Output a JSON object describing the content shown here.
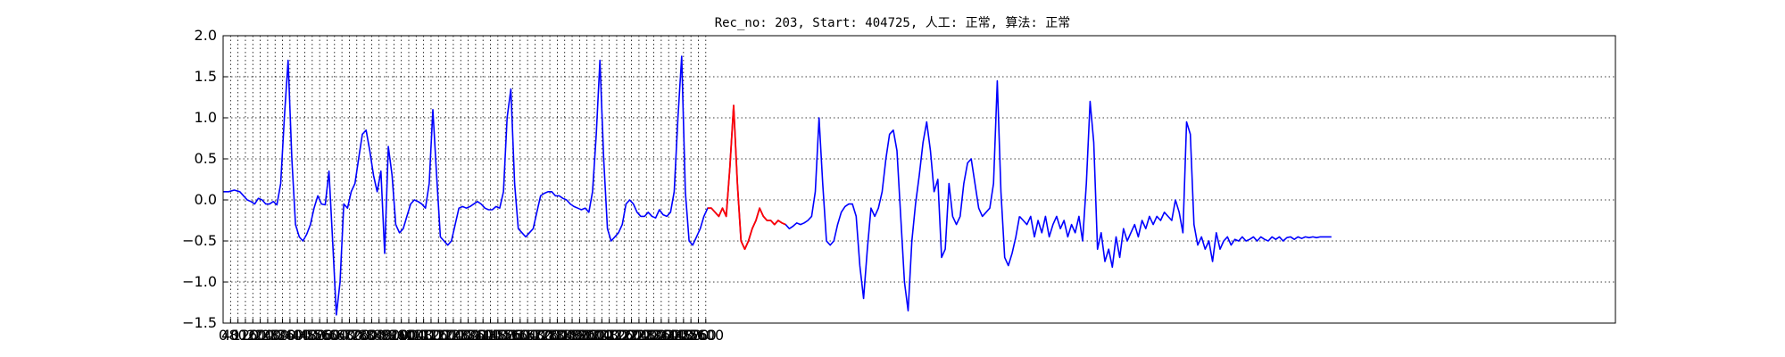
{
  "chart_data": {
    "type": "line",
    "title": "Rec_no: 203, Start: 404725, 人工: 正常, 算法: 正常",
    "xlabel": "",
    "ylabel": "",
    "xlim": [
      0,
      7500
    ],
    "ylim": [
      -1.5,
      2.0
    ],
    "grid": true,
    "x_ticks": [
      0,
      40,
      80,
      120,
      160,
      200,
      240,
      280,
      320,
      360,
      400,
      440,
      480,
      520,
      560,
      600,
      640,
      680,
      720,
      760,
      800,
      840,
      880,
      920,
      960,
      1000,
      1040,
      1080,
      1120,
      1160,
      1200,
      1240,
      1280,
      1320,
      1360,
      1400,
      1440,
      1480,
      1520,
      1560,
      1600,
      1640,
      1680,
      1720,
      1760,
      1800,
      1840,
      1880,
      1920,
      1960,
      2000,
      2040,
      2080,
      2120,
      2160,
      2200,
      2240,
      2280,
      2320,
      2360,
      2400,
      2440,
      2480,
      2520,
      2560,
      2600
    ],
    "y_ticks": [
      -1.5,
      -1.0,
      -0.5,
      0.0,
      0.5,
      1.0,
      1.5,
      2.0
    ],
    "y_tick_labels": [
      "−1.5",
      "−1.0",
      "−0.5",
      "0.0",
      "0.5",
      "1.0",
      "1.5",
      "2.0"
    ],
    "series": [
      {
        "color": "#0000ff",
        "x": [
          0,
          30,
          60,
          90,
          110,
          130,
          150,
          170,
          190,
          210,
          230,
          250,
          270,
          290,
          310,
          330,
          350,
          370,
          390,
          410,
          430,
          450,
          470,
          490,
          510,
          530,
          550,
          570,
          590,
          610,
          630,
          650,
          670,
          690,
          710,
          730,
          750,
          770,
          790,
          810,
          830,
          850,
          870,
          890,
          910,
          930,
          950,
          970,
          990,
          1010,
          1030,
          1050,
          1070,
          1090,
          1110,
          1130,
          1150,
          1170,
          1190,
          1210,
          1230,
          1250,
          1270,
          1290,
          1310,
          1330,
          1350,
          1370,
          1390,
          1410,
          1430,
          1450,
          1470,
          1490,
          1510,
          1530,
          1550,
          1570,
          1590,
          1610,
          1630,
          1650,
          1670,
          1690,
          1710,
          1730,
          1750,
          1770,
          1790,
          1810,
          1830,
          1850,
          1870,
          1890,
          1910,
          1930,
          1950,
          1970,
          1990,
          2010,
          2030,
          2050,
          2070,
          2090,
          2110,
          2130,
          2150,
          2170,
          2190,
          2210,
          2230,
          2250,
          2270,
          2290,
          2310,
          2330,
          2350,
          2370,
          2390,
          2410,
          2430,
          2450,
          2470,
          2490,
          2510,
          2530,
          2550,
          2570,
          2590,
          2610,
          2630,
          2650,
          2670,
          2690,
          2710,
          2730,
          2750,
          2770,
          2790,
          2810,
          2830,
          2850,
          2870,
          2890,
          2910,
          2930,
          2950,
          2970,
          2990,
          3010,
          3030,
          3050,
          3070,
          3090,
          3110,
          3130,
          3150,
          3170,
          3190,
          3210,
          3230,
          3250,
          3270,
          3290,
          3310,
          3330,
          3350,
          3370,
          3390,
          3410,
          3430,
          3450,
          3470,
          3490,
          3510,
          3530,
          3550,
          3570,
          3590,
          3610,
          3630,
          3650,
          3670,
          3690,
          3710,
          3730,
          3750,
          3770,
          3790,
          3810,
          3830,
          3850,
          3870,
          3890,
          3910,
          3930,
          3950,
          3970,
          3990,
          4010,
          4030,
          4050,
          4070,
          4090,
          4110,
          4130,
          4150,
          4170,
          4190,
          4210,
          4230,
          4250,
          4270,
          4290
        ],
        "y": [
          0.1,
          0.1,
          0.12,
          0.1,
          0.05,
          0.0,
          -0.02,
          -0.05,
          0.02,
          0.0,
          -0.05,
          -0.05,
          -0.02,
          -0.06,
          0.2,
          1.0,
          1.7,
          0.5,
          -0.3,
          -0.45,
          -0.5,
          -0.42,
          -0.3,
          -0.1,
          0.05,
          -0.05,
          -0.06,
          0.35,
          -0.5,
          -1.4,
          -1.0,
          -0.05,
          -0.1,
          0.1,
          0.2,
          0.5,
          0.8,
          0.85,
          0.6,
          0.3,
          0.1,
          0.35,
          -0.65,
          0.65,
          0.3,
          -0.3,
          -0.4,
          -0.35,
          -0.2,
          -0.05,
          0.0,
          -0.02,
          -0.05,
          -0.1,
          0.2,
          1.1,
          0.3,
          -0.45,
          -0.5,
          -0.55,
          -0.5,
          -0.3,
          -0.1,
          -0.08,
          -0.1,
          -0.08,
          -0.05,
          -0.02,
          -0.05,
          -0.1,
          -0.12,
          -0.12,
          -0.08,
          -0.1,
          0.1,
          1.0,
          1.35,
          0.2,
          -0.35,
          -0.4,
          -0.45,
          -0.4,
          -0.35,
          -0.15,
          0.05,
          0.08,
          0.1,
          0.1,
          0.05,
          0.05,
          0.02,
          0.0,
          -0.05,
          -0.08,
          -0.1,
          -0.12,
          -0.1,
          -0.15,
          0.1,
          0.8,
          1.7,
          0.5,
          -0.35,
          -0.5,
          -0.45,
          -0.4,
          -0.3,
          -0.05,
          0.0,
          -0.05,
          -0.15,
          -0.2,
          -0.2,
          -0.15,
          -0.2,
          -0.22,
          -0.12,
          -0.18,
          -0.2,
          -0.15,
          0.1,
          1.0,
          1.75,
          0.1,
          -0.5,
          -0.55,
          -0.45,
          -0.35,
          -0.2,
          -0.1,
          -0.1,
          -0.15,
          -0.2,
          -0.1,
          -0.2,
          0.4,
          1.15,
          0.2,
          -0.5,
          -0.6,
          -0.5,
          -0.35,
          -0.25,
          -0.1,
          -0.2,
          -0.25,
          -0.25,
          -0.3,
          -0.25,
          -0.28,
          -0.3,
          -0.35,
          -0.32,
          -0.28,
          -0.3,
          -0.28,
          -0.25,
          -0.2,
          0.1,
          1.0,
          0.2,
          -0.5,
          -0.55,
          -0.5,
          -0.3,
          -0.15,
          -0.08,
          -0.05,
          -0.05,
          -0.2,
          -0.8,
          -1.2,
          -0.6,
          -0.1,
          -0.2,
          -0.1,
          0.1,
          0.5,
          0.8,
          0.85,
          0.6,
          -0.2,
          -1.0,
          -1.35,
          -0.5,
          -0.05,
          0.3,
          0.7,
          0.95,
          0.6,
          0.1,
          0.25,
          -0.7,
          -0.6,
          0.2,
          -0.2,
          -0.3,
          -0.2,
          0.2,
          0.45,
          0.5,
          0.2,
          -0.1,
          -0.2,
          -0.15,
          -0.1,
          0.2,
          1.45,
          0.1,
          -0.7,
          -0.8,
          -0.65,
          -0.45,
          -0.2
        ]
      },
      {
        "color": "#0000ff",
        "x": [
          4290,
          4310,
          4330,
          4350,
          4370,
          4390,
          4410,
          4430,
          4450,
          4470,
          4490,
          4510,
          4530,
          4550,
          4570,
          4590,
          4610,
          4630,
          4650,
          4670,
          4690,
          4710,
          4730,
          4750,
          4770,
          4790,
          4810,
          4830,
          4850,
          4870,
          4890,
          4910,
          4930,
          4950,
          4970,
          4990,
          5010,
          5030,
          5050,
          5070,
          5090,
          5110,
          5130,
          5150,
          5170,
          5190,
          5210,
          5230,
          5250,
          5270,
          5290,
          5310,
          5330,
          5350,
          5370,
          5390,
          5410,
          5430,
          5450,
          5470,
          5490,
          5510,
          5530,
          5550,
          5570,
          5590,
          5610,
          5630,
          5650,
          5670,
          5690,
          5710,
          5730,
          5750,
          5770,
          5790,
          5810,
          5830,
          5850,
          5870,
          5890,
          5910,
          5930,
          5950,
          5970
        ],
        "y": [
          -0.2,
          -0.25,
          -0.3,
          -0.2,
          -0.45,
          -0.25,
          -0.4,
          -0.2,
          -0.45,
          -0.3,
          -0.2,
          -0.35,
          -0.25,
          -0.45,
          -0.3,
          -0.4,
          -0.2,
          -0.5,
          0.2,
          1.2,
          0.7,
          -0.6,
          -0.4,
          -0.75,
          -0.6,
          -0.82,
          -0.45,
          -0.7,
          -0.35,
          -0.5,
          -0.4,
          -0.3,
          -0.45,
          -0.25,
          -0.35,
          -0.2,
          -0.3,
          -0.2,
          -0.25,
          -0.15,
          -0.2,
          -0.25,
          0.0,
          -0.15,
          -0.4,
          0.95,
          0.8,
          -0.3,
          -0.55,
          -0.45,
          -0.6,
          -0.5,
          -0.75,
          -0.4,
          -0.6,
          -0.5,
          -0.45,
          -0.55,
          -0.48,
          -0.5,
          -0.45,
          -0.5,
          -0.48,
          -0.45,
          -0.5,
          -0.45,
          -0.48,
          -0.5,
          -0.45,
          -0.48,
          -0.45,
          -0.5,
          -0.46,
          -0.45,
          -0.48,
          -0.45,
          -0.47,
          -0.45,
          -0.46,
          -0.45,
          -0.46,
          -0.45,
          -0.45,
          -0.45,
          -0.45
        ]
      }
    ],
    "highlight_color": "#ff0000"
  }
}
